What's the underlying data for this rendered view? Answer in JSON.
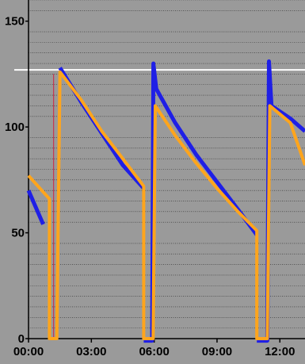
{
  "chart_data": {
    "type": "line",
    "title": "",
    "xlabel": "",
    "ylabel": "",
    "xlim": [
      0,
      13.2
    ],
    "ylim": [
      -12,
      160
    ],
    "x_tick_labels": [
      {
        "value": 0,
        "label": "00:00"
      },
      {
        "value": 3,
        "label": "03:00"
      },
      {
        "value": 6,
        "label": "06:00"
      },
      {
        "value": 9,
        "label": "09:00"
      },
      {
        "value": 12,
        "label": "12:00"
      }
    ],
    "y_tick_labels": [
      {
        "value": 0,
        "label": "0"
      },
      {
        "value": 50,
        "label": "50"
      },
      {
        "value": 100,
        "label": "100"
      },
      {
        "value": 150,
        "label": "150"
      }
    ],
    "reference_line": {
      "y": 127
    },
    "grid": true,
    "series": [
      {
        "color": "#1f1fe6",
        "width": 5,
        "points": [
          [
            0,
            70
          ],
          [
            0.7,
            54
          ]
        ]
      },
      {
        "color": "#1f1fe6",
        "width": 5,
        "points": [
          [
            1.5,
            128
          ],
          [
            2.5,
            112
          ],
          [
            3.5,
            97
          ],
          [
            4.5,
            82
          ],
          [
            5.5,
            71
          ]
        ]
      },
      {
        "color": "#1f1fe6",
        "width": 5,
        "points": [
          [
            5.5,
            -1
          ],
          [
            5.9,
            -1
          ],
          [
            5.96,
            130
          ],
          [
            6.1,
            118
          ],
          [
            7.0,
            102
          ],
          [
            8.0,
            87
          ],
          [
            9.0,
            74
          ],
          [
            10.0,
            61
          ],
          [
            10.9,
            49
          ]
        ]
      },
      {
        "color": "#1f1fe6",
        "width": 5,
        "points": [
          [
            10.9,
            -1
          ],
          [
            11.4,
            -1
          ],
          [
            11.48,
            131
          ],
          [
            11.6,
            110
          ],
          [
            12.5,
            104
          ],
          [
            13.2,
            98
          ]
        ]
      },
      {
        "color": "#cc2244",
        "width": 1,
        "points": [
          [
            1.2,
            0
          ],
          [
            1.2,
            125
          ]
        ]
      },
      {
        "color": "#ffa51c",
        "width": 4,
        "points": [
          [
            0,
            77
          ],
          [
            1.0,
            66
          ],
          [
            1.0,
            0
          ],
          [
            1.35,
            0
          ],
          [
            1.5,
            126
          ],
          [
            2.5,
            113
          ],
          [
            3.5,
            98
          ],
          [
            4.5,
            85
          ],
          [
            5.5,
            72
          ],
          [
            5.5,
            0
          ],
          [
            5.95,
            0
          ],
          [
            6.05,
            110
          ],
          [
            7.0,
            96
          ],
          [
            8.0,
            83
          ],
          [
            9.0,
            71
          ],
          [
            10.0,
            60
          ],
          [
            10.9,
            51
          ],
          [
            10.9,
            0
          ],
          [
            11.4,
            0
          ],
          [
            11.52,
            110
          ],
          [
            12.5,
            102
          ],
          [
            13.2,
            82
          ]
        ]
      }
    ]
  }
}
